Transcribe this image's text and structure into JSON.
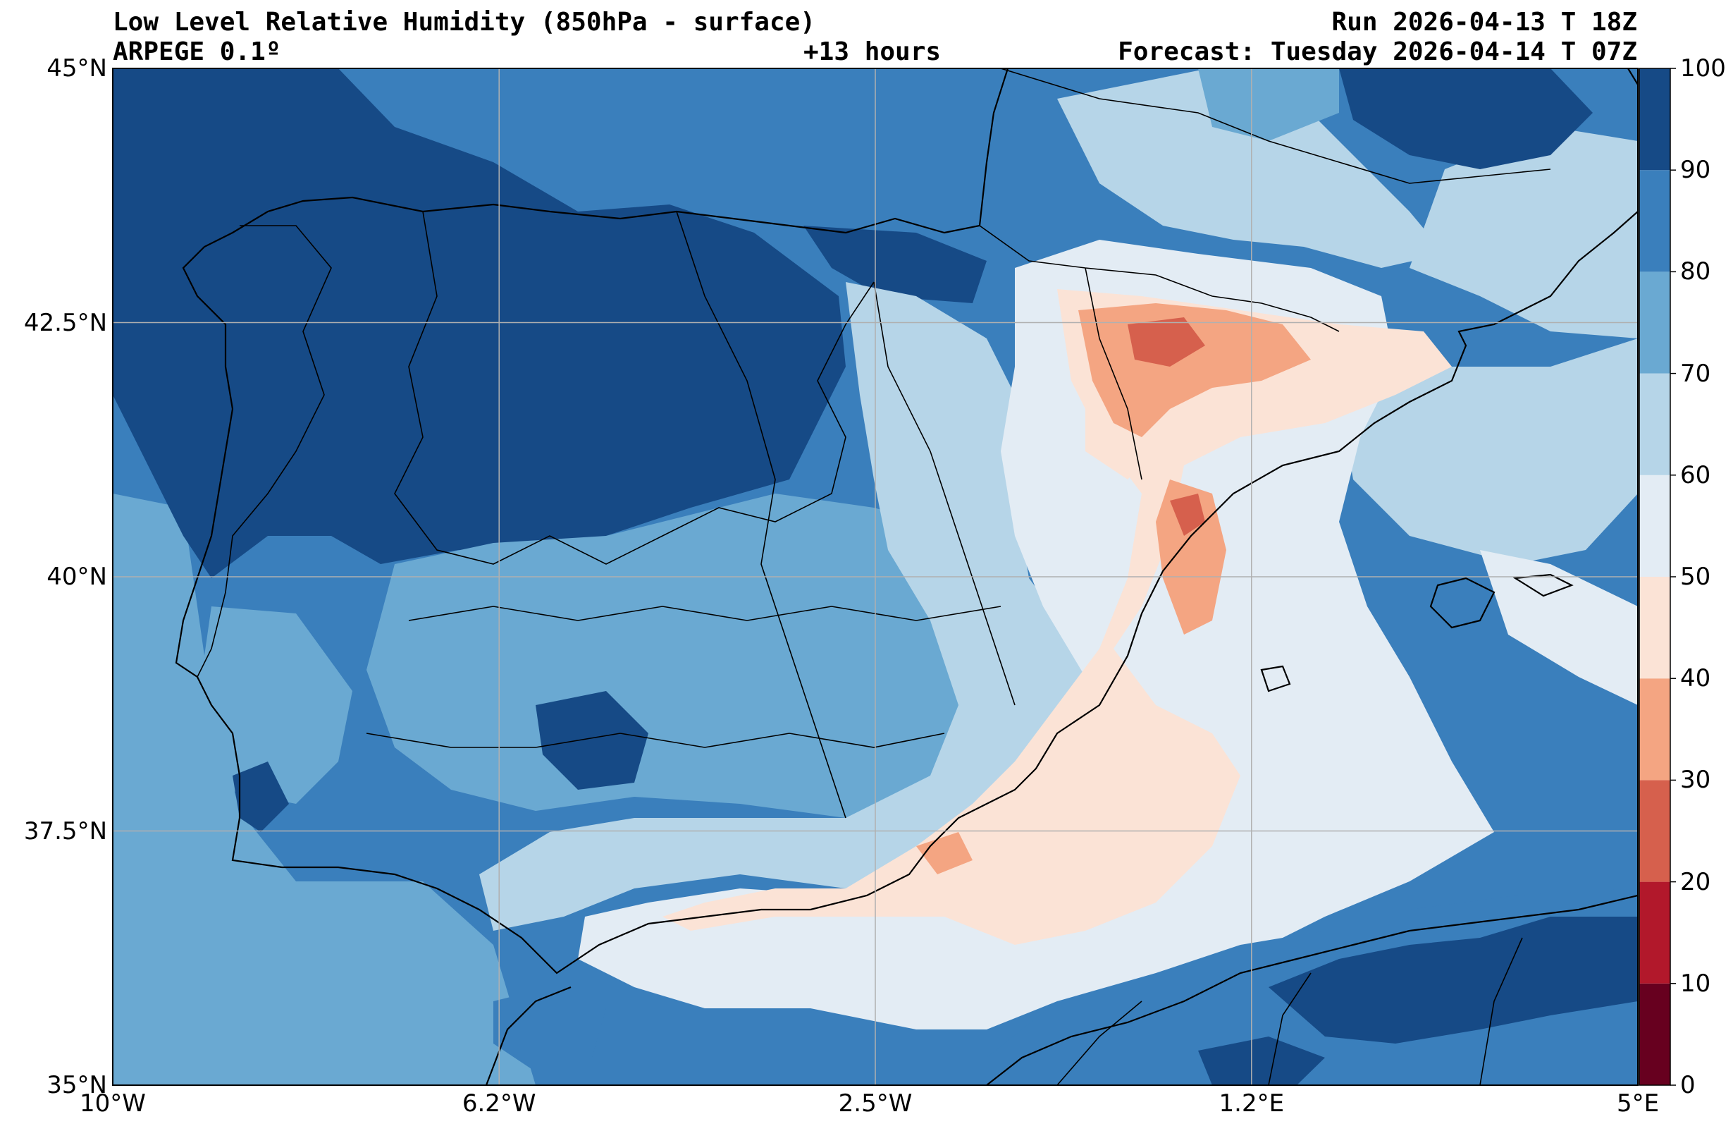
{
  "header": {
    "title": "Low Level Relative Humidity (850hPa - surface)",
    "model": "ARPEGE 0.1º",
    "lead_time": "+13 hours",
    "run": "Run 2026-04-13 T 18Z",
    "valid": "Forecast: Tuesday 2026-04-14 T 07Z"
  },
  "map": {
    "x_ticks": [
      {
        "lon": -10,
        "label": "10°W"
      },
      {
        "lon": -6.2,
        "label": "6.2°W"
      },
      {
        "lon": -2.5,
        "label": "2.5°W"
      },
      {
        "lon": 1.2,
        "label": "1.2°E"
      },
      {
        "lon": 5,
        "label": "5°E"
      }
    ],
    "y_ticks": [
      {
        "lat": 35,
        "label": "35°N"
      },
      {
        "lat": 37.5,
        "label": "37.5°N"
      },
      {
        "lat": 40,
        "label": "40°N"
      },
      {
        "lat": 42.5,
        "label": "42.5°N"
      },
      {
        "lat": 45,
        "label": "45°N"
      }
    ],
    "lon_range": [
      -10,
      5
    ],
    "lat_range": [
      35,
      45
    ],
    "grid": true
  },
  "colorbar": {
    "labels": [
      "0",
      "10",
      "20",
      "30",
      "40",
      "50",
      "60",
      "70",
      "80",
      "90",
      "100"
    ],
    "bins": [
      {
        "range": [
          0,
          10
        ],
        "color": "#67001f"
      },
      {
        "range": [
          10,
          20
        ],
        "color": "#b2182b"
      },
      {
        "range": [
          20,
          30
        ],
        "color": "#d6604d"
      },
      {
        "range": [
          30,
          40
        ],
        "color": "#f4a582"
      },
      {
        "range": [
          40,
          50
        ],
        "color": "#fbe3d6"
      },
      {
        "range": [
          50,
          60
        ],
        "color": "#e3ecf4"
      },
      {
        "range": [
          60,
          70
        ],
        "color": "#b6d5e8"
      },
      {
        "range": [
          70,
          80
        ],
        "color": "#6aa9d2"
      },
      {
        "range": [
          80,
          90
        ],
        "color": "#3a7fbc"
      },
      {
        "range": [
          90,
          100
        ],
        "color": "#164a86"
      }
    ]
  }
}
